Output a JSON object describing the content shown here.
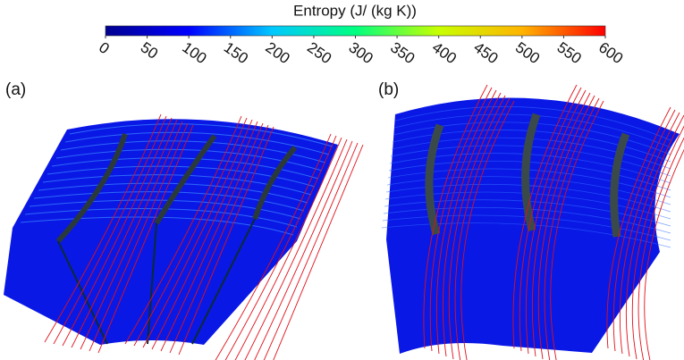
{
  "chart_data": {
    "type": "colorbar",
    "title": "Entropy (J/ (kg K))",
    "xlim": [
      0,
      600
    ],
    "xticks": [
      0,
      50,
      100,
      150,
      200,
      250,
      300,
      350,
      400,
      450,
      500,
      550,
      600
    ],
    "colors": [
      "#00008f",
      "#0000ff",
      "#00c8ff",
      "#00ff80",
      "#c8ff00",
      "#ffb400",
      "#ff0000"
    ],
    "panels": [
      "(a)",
      "(b)"
    ]
  }
}
